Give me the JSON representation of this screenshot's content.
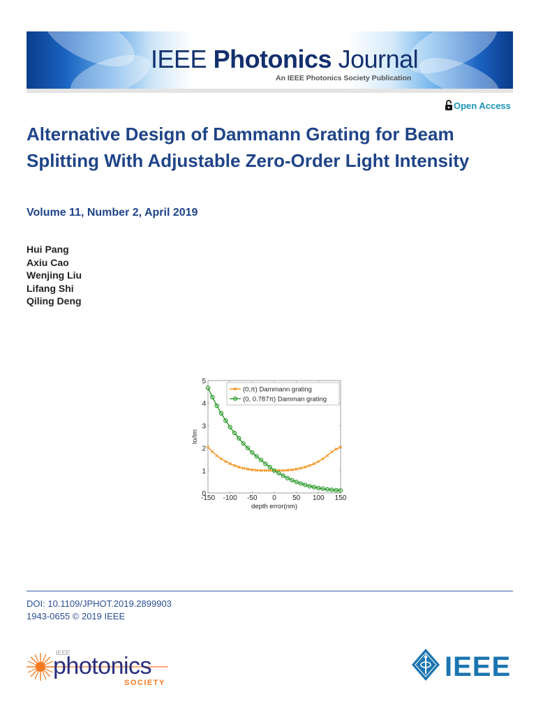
{
  "header": {
    "journal_prefix": "IEEE",
    "journal_bold": "Photonics",
    "journal_suffix": "Journal",
    "subtitle": "An IEEE Photonics Society Publication"
  },
  "access": {
    "label": "Open Access",
    "icon": "open-lock-icon",
    "color": "#1a94b8"
  },
  "article": {
    "title": "Alternative Design of Dammann Grating for Beam Splitting With Adjustable Zero-Order Light Intensity",
    "volume": "Volume 11, Number 2, April 2019",
    "title_color": "#1f4488"
  },
  "authors": [
    "Hui Pang",
    "Axiu Cao",
    "Wenjing Liu",
    "Lifang Shi",
    "Qiling Deng"
  ],
  "chart_data": {
    "type": "line",
    "title": "",
    "xlabel": "depth error(nm)",
    "ylabel": "Io/Im",
    "xlim": [
      -150,
      150
    ],
    "ylim": [
      0,
      5
    ],
    "xticks": [
      -150,
      -100,
      -50,
      0,
      50,
      100,
      150
    ],
    "yticks": [
      0,
      1,
      2,
      3,
      4,
      5
    ],
    "grid": false,
    "legend_position": "upper right",
    "x": [
      -150,
      -140,
      -130,
      -120,
      -110,
      -100,
      -90,
      -80,
      -70,
      -60,
      -50,
      -40,
      -30,
      -20,
      -10,
      0,
      10,
      20,
      30,
      40,
      50,
      60,
      70,
      80,
      90,
      100,
      110,
      120,
      130,
      140,
      150
    ],
    "series": [
      {
        "name": "(0,π) Dammann grating",
        "color": "#f39019",
        "marker": "x",
        "values": [
          2.04,
          1.83,
          1.66,
          1.52,
          1.4,
          1.3,
          1.22,
          1.15,
          1.1,
          1.06,
          1.03,
          1.01,
          1.0,
          1.0,
          1.0,
          1.0,
          1.0,
          1.0,
          1.01,
          1.03,
          1.06,
          1.1,
          1.15,
          1.22,
          1.3,
          1.4,
          1.52,
          1.66,
          1.83,
          1.95,
          2.04
        ]
      },
      {
        "name": "(0, 0.787π) Damman grating",
        "color": "#2a9a2a",
        "marker": "o",
        "values": [
          4.68,
          4.26,
          3.88,
          3.54,
          3.22,
          2.93,
          2.67,
          2.43,
          2.2,
          2.0,
          1.8,
          1.63,
          1.47,
          1.3,
          1.15,
          1.0,
          0.88,
          0.77,
          0.66,
          0.57,
          0.49,
          0.42,
          0.36,
          0.3,
          0.26,
          0.22,
          0.19,
          0.16,
          0.14,
          0.12,
          0.11
        ]
      }
    ]
  },
  "footer": {
    "doi": "DOI: 10.1109/JPHOT.2019.2899903",
    "issn": "1943-0655 © 2019 IEEE",
    "society_logo_top": "IEEE",
    "society_logo_main": "photonics",
    "society_logo_bottom": "SOCIETY",
    "ieee_logo": "IEEE",
    "society_color": "#2b2f7e",
    "society_accent": "#f47b20",
    "ieee_color": "#1b75b0"
  }
}
